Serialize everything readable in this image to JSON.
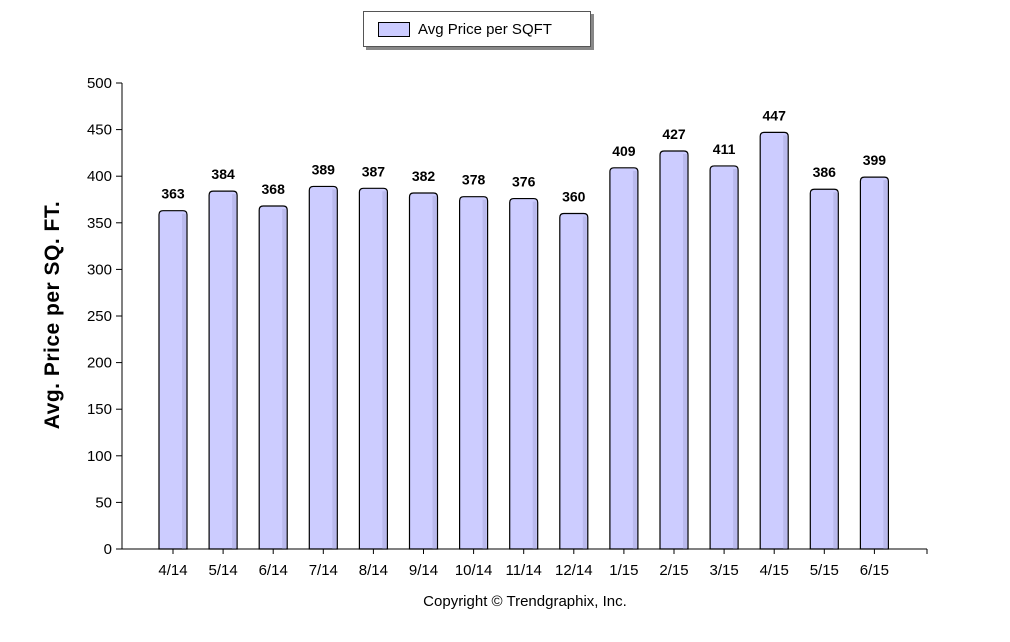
{
  "legend": {
    "label": "Avg Price per SQFT",
    "color": "#ccccff"
  },
  "copyright": "Copyright © Trendgraphix, Inc.",
  "chart_data": {
    "type": "bar",
    "ylabel": "Avg. Price per SQ. FT.",
    "categories": [
      "4/14",
      "5/14",
      "6/14",
      "7/14",
      "8/14",
      "9/14",
      "10/14",
      "11/14",
      "12/14",
      "1/15",
      "2/15",
      "3/15",
      "4/15",
      "5/15",
      "6/15"
    ],
    "series": [
      {
        "name": "Avg Price per SQFT",
        "values": [
          363,
          384,
          368,
          389,
          387,
          382,
          378,
          376,
          360,
          409,
          427,
          411,
          447,
          386,
          399
        ]
      }
    ],
    "ylim": [
      0,
      500
    ],
    "yticks": [
      0,
      50,
      100,
      150,
      200,
      250,
      300,
      350,
      400,
      450,
      500
    ],
    "bar_color": "#ccccff",
    "grid": false,
    "legend_position": "top-center"
  }
}
